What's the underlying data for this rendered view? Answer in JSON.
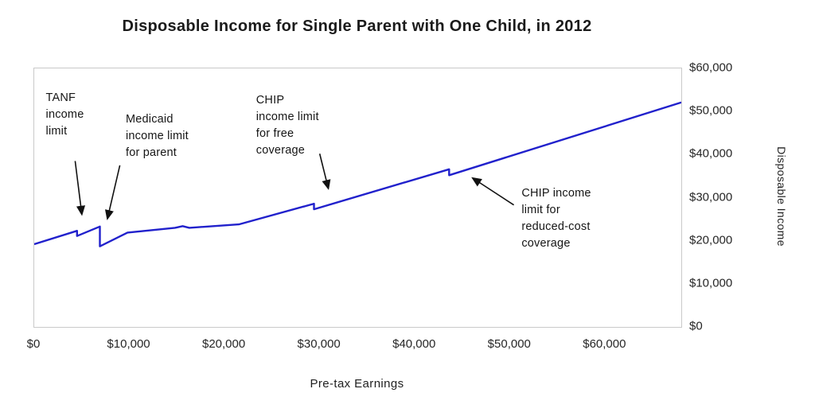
{
  "chart_data": {
    "type": "line",
    "title": "Disposable Income for Single Parent with One Child, in 2012",
    "xlabel": "Pre-tax Earnings",
    "ylabel": "Disposable Income",
    "xlim": [
      0,
      68000
    ],
    "ylim": [
      0,
      60000
    ],
    "grid": false,
    "legend": false,
    "x_ticks": [
      {
        "value": 0,
        "label": "$0"
      },
      {
        "value": 10000,
        "label": "$10,000"
      },
      {
        "value": 20000,
        "label": "$20,000"
      },
      {
        "value": 30000,
        "label": "$30,000"
      },
      {
        "value": 40000,
        "label": "$40,000"
      },
      {
        "value": 50000,
        "label": "$50,000"
      },
      {
        "value": 60000,
        "label": "$60,000"
      }
    ],
    "y_ticks": [
      {
        "value": 0,
        "label": "$0"
      },
      {
        "value": 10000,
        "label": "$10,000"
      },
      {
        "value": 20000,
        "label": "$20,000"
      },
      {
        "value": 30000,
        "label": "$30,000"
      },
      {
        "value": 40000,
        "label": "$40,000"
      },
      {
        "value": 50000,
        "label": "$50,000"
      },
      {
        "value": 60000,
        "label": "$60,000"
      }
    ],
    "series": [
      {
        "name": "Disposable income",
        "color": "#2121cc",
        "points": [
          [
            0,
            19200
          ],
          [
            4500,
            22300
          ],
          [
            4500,
            21100
          ],
          [
            6900,
            23300
          ],
          [
            6900,
            18700
          ],
          [
            9800,
            21900
          ],
          [
            14800,
            23000
          ],
          [
            15600,
            23400
          ],
          [
            16300,
            23000
          ],
          [
            21500,
            23800
          ],
          [
            29400,
            28600
          ],
          [
            29400,
            27300
          ],
          [
            43600,
            36600
          ],
          [
            43600,
            35200
          ],
          [
            68000,
            52100
          ]
        ]
      }
    ],
    "annotations": [
      {
        "id": "tanf-income-limit",
        "text": "TANF\nincome\nlimit",
        "text_x": 1300,
        "text_y": 54800,
        "arrow": {
          "x1": 4300,
          "y1": 38500,
          "x2": 5000,
          "y2": 26200
        }
      },
      {
        "id": "medicaid-income-limit",
        "text": "Medicaid\nincome limit\nfor parent",
        "text_x": 9700,
        "text_y": 49800,
        "arrow": {
          "x1": 9000,
          "y1": 37500,
          "x2": 7700,
          "y2": 25200
        }
      },
      {
        "id": "chip-free-coverage-limit",
        "text": "CHIP\nincome limit\nfor free\ncoverage",
        "text_x": 23400,
        "text_y": 54300,
        "arrow": {
          "x1": 30000,
          "y1": 40200,
          "x2": 30900,
          "y2": 32200
        }
      },
      {
        "id": "chip-reduced-cost-limit",
        "text": "CHIP income\nlimit for\nreduced-cost\ncoverage",
        "text_x": 51300,
        "text_y": 32700,
        "arrow": {
          "x1": 50400,
          "y1": 28300,
          "x2": 46100,
          "y2": 34500
        }
      }
    ],
    "colors": {
      "line": "#2121cc",
      "arrow": "#111111",
      "plot_border": "#c9c9c9",
      "text": "#161616"
    }
  }
}
